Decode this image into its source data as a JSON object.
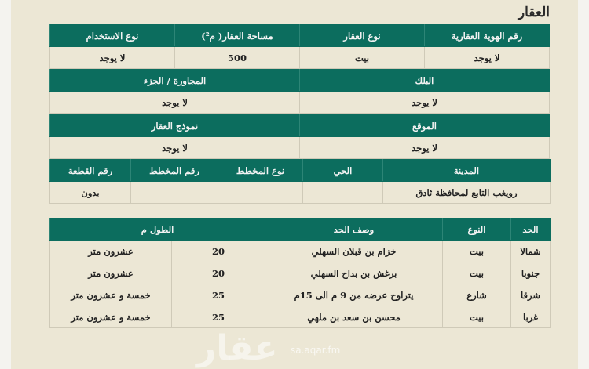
{
  "title": "العقار",
  "t1": {
    "headers": [
      "رقم الهوية العقارية",
      "نوع العقار",
      "مساحة العقار( م²)",
      "نوع الاستخدام"
    ],
    "values": [
      "لا يوجد",
      "بيت",
      "500",
      "لا يوجد"
    ]
  },
  "t2": {
    "headers": [
      "البلك",
      "المجاورة / الجزء"
    ],
    "values": [
      "لا يوجد",
      "لا يوجد"
    ]
  },
  "t3": {
    "headers": [
      "الموقع",
      "نموذج العقار"
    ],
    "values": [
      "لا يوجد",
      "لا يوجد"
    ]
  },
  "t4": {
    "headers": [
      "المدينة",
      "الحي",
      "نوع المخطط",
      "رقم المخطط",
      "رقم القطعة"
    ],
    "values": [
      "رويغب التابع لمحافظة ثادق",
      "",
      "",
      "",
      "بدون"
    ]
  },
  "bounds": {
    "headers": [
      "الحد",
      "النوع",
      "وصف الحد",
      "الطول م"
    ],
    "rows": [
      {
        "side": "شمالا",
        "type": "بيت",
        "desc": "خزام بن قبلان السهلي",
        "len": "20",
        "len_text": "عشرون متر"
      },
      {
        "side": "جنوبا",
        "type": "بيت",
        "desc": "برغش بن بداح السهلي",
        "len": "20",
        "len_text": "عشرون متر"
      },
      {
        "side": "شرقا",
        "type": "شارع",
        "desc": "يتراوح عرضه من 9 م الى 15م",
        "len": "25",
        "len_text": "خمسة و عشرون متر"
      },
      {
        "side": "غربا",
        "type": "بيت",
        "desc": "محسن بن سعد بن ملهي",
        "len": "25",
        "len_text": "خمسة و عشرون متر"
      }
    ]
  },
  "watermark": {
    "logo": "عقار",
    "url": "sa.aqar.fm"
  }
}
